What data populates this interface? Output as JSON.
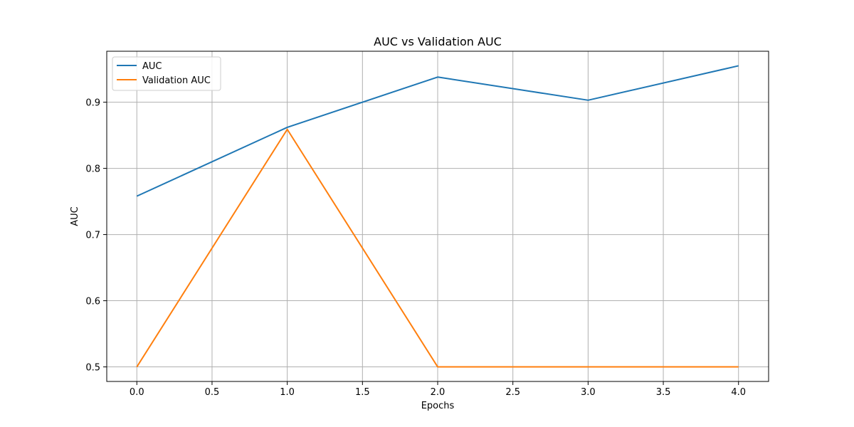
{
  "chart_data": {
    "type": "line",
    "title": "AUC vs Validation AUC",
    "xlabel": "Epochs",
    "ylabel": "AUC",
    "x": [
      0,
      1,
      2,
      3,
      4
    ],
    "xlim": [
      -0.2,
      4.2
    ],
    "ylim": [
      0.478,
      0.977
    ],
    "xticks": [
      0,
      0.5,
      1,
      1.5,
      2,
      2.5,
      3,
      3.5,
      4
    ],
    "xtick_labels": [
      "0.0",
      "0.5",
      "1.0",
      "1.5",
      "2.0",
      "2.5",
      "3.0",
      "3.5",
      "4.0"
    ],
    "yticks": [
      0.5,
      0.6,
      0.7,
      0.8,
      0.9
    ],
    "ytick_labels": [
      "0.5",
      "0.6",
      "0.7",
      "0.8",
      "0.9"
    ],
    "grid": true,
    "legend_position": "top-left",
    "series": [
      {
        "name": "AUC",
        "color": "#1f77b4",
        "values": [
          0.758,
          0.862,
          0.938,
          0.903,
          0.955
        ]
      },
      {
        "name": "Validation AUC",
        "color": "#ff7f0e",
        "values": [
          0.5,
          0.859,
          0.5,
          0.5,
          0.5
        ]
      }
    ]
  }
}
